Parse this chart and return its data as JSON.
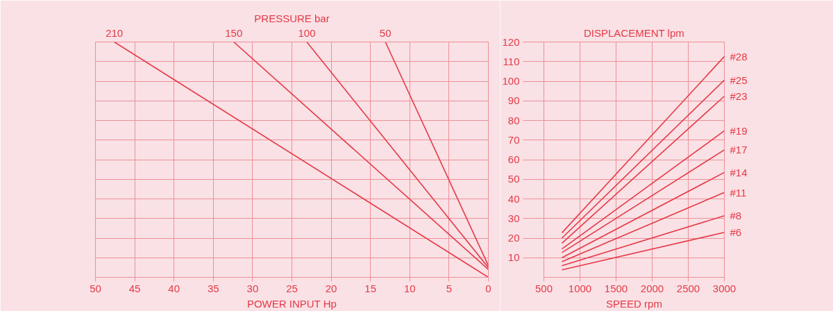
{
  "chart_data": [
    {
      "type": "line",
      "title": "PRESSURE bar",
      "xlabel": "POWER INPUT Hp",
      "xlim": [
        50,
        0
      ],
      "xticks": [
        50,
        45,
        40,
        35,
        30,
        25,
        20,
        15,
        10,
        5,
        0
      ],
      "ylim": [
        0,
        120
      ],
      "yticks": [
        0,
        10,
        20,
        30,
        40,
        50,
        60,
        70,
        80,
        90,
        100,
        110,
        120
      ],
      "tick_labels": "x",
      "grid": true,
      "legend": false,
      "series": [
        {
          "name": "210",
          "color": "#e53946",
          "x": [
            0,
            47.6
          ],
          "values": [
            0,
            120
          ]
        },
        {
          "name": "150",
          "color": "#e53946",
          "x": [
            0,
            32.4
          ],
          "values": [
            4,
            120
          ]
        },
        {
          "name": "100",
          "color": "#e53946",
          "x": [
            0,
            23.1
          ],
          "values": [
            5,
            120
          ]
        },
        {
          "name": "50",
          "color": "#e53946",
          "x": [
            0,
            13.1
          ],
          "values": [
            6,
            120
          ]
        }
      ]
    },
    {
      "type": "line",
      "ylabel": "DISPLACEMENT lpm",
      "xlabel": "SPEED rpm",
      "xlim": [
        500,
        3000
      ],
      "xticks": [
        500,
        1000,
        1500,
        2000,
        2500,
        3000
      ],
      "ylim": [
        0,
        120
      ],
      "yticks": [
        10,
        20,
        30,
        40,
        50,
        60,
        70,
        80,
        90,
        100,
        110,
        120
      ],
      "grid": true,
      "legend": false,
      "series": [
        {
          "name": "#28",
          "color": "#e53946",
          "x": [
            750,
            3000
          ],
          "values": [
            22.7,
            112.6
          ]
        },
        {
          "name": "#25",
          "color": "#e53946",
          "x": [
            750,
            3000
          ],
          "values": [
            20,
            100.6
          ]
        },
        {
          "name": "#23",
          "color": "#e53946",
          "x": [
            750,
            3000
          ],
          "values": [
            17.4,
            92.4
          ]
        },
        {
          "name": "#19",
          "color": "#e53946",
          "x": [
            750,
            3000
          ],
          "values": [
            14.5,
            74.7
          ]
        },
        {
          "name": "#17",
          "color": "#e53946",
          "x": [
            750,
            3000
          ],
          "values": [
            12.6,
            65
          ]
        },
        {
          "name": "#14",
          "color": "#e53946",
          "x": [
            750,
            3000
          ],
          "values": [
            10,
            53.5
          ]
        },
        {
          "name": "#11",
          "color": "#e53946",
          "x": [
            750,
            3000
          ],
          "values": [
            8,
            43.3
          ]
        },
        {
          "name": "#8",
          "color": "#e53946",
          "x": [
            750,
            3000
          ],
          "values": [
            5.9,
            31.4
          ]
        },
        {
          "name": "#6",
          "color": "#e53946",
          "x": [
            750,
            3000
          ],
          "values": [
            3.8,
            22.9
          ]
        }
      ]
    }
  ]
}
